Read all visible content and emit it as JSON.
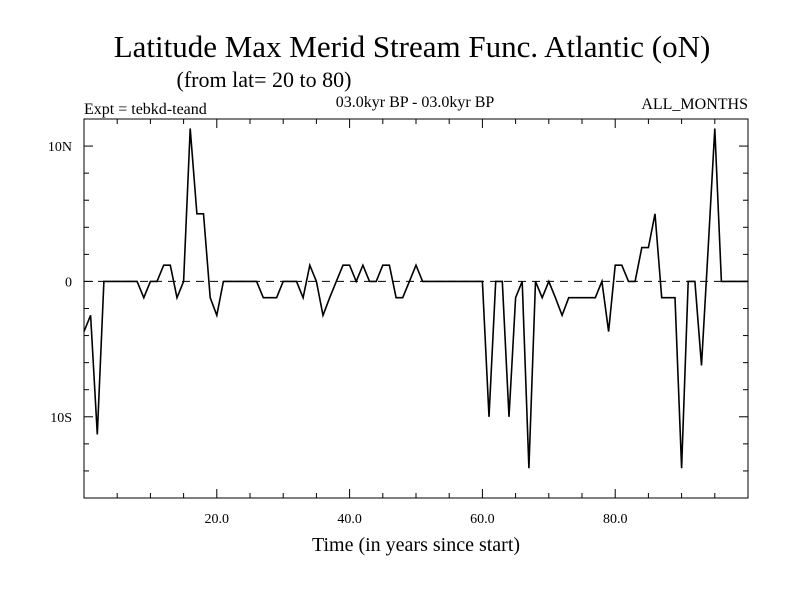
{
  "chart_data": {
    "type": "line",
    "title": "Latitude Max Merid Stream Func. Atlantic (oN)",
    "subtitle": "(from lat= 20 to 80)",
    "expt_label": "Expt = tebkd-teand",
    "period_label": "03.0kyr BP - 03.0kyr BP",
    "months_label": "ALL_MONTHS",
    "xlabel": "Time (in years since start)",
    "ylabel": "",
    "xlim": [
      0,
      100
    ],
    "ylim": [
      -16,
      12
    ],
    "x_ticks": [
      {
        "value": 20,
        "label": "20.0"
      },
      {
        "value": 40,
        "label": "40.0"
      },
      {
        "value": 60,
        "label": "60.0"
      },
      {
        "value": 80,
        "label": "80.0"
      }
    ],
    "y_ticks": [
      {
        "value": 10,
        "label": "10N"
      },
      {
        "value": 0,
        "label": "0"
      },
      {
        "value": -10,
        "label": "10S"
      }
    ],
    "zero_line": "dashed",
    "x": [
      0,
      1,
      2,
      3,
      4,
      5,
      6,
      7,
      8,
      9,
      10,
      11,
      12,
      13,
      14,
      15,
      16,
      17,
      18,
      19,
      20,
      21,
      22,
      23,
      24,
      25,
      26,
      27,
      28,
      29,
      30,
      31,
      32,
      33,
      34,
      35,
      36,
      37,
      38,
      39,
      40,
      41,
      42,
      43,
      44,
      45,
      46,
      47,
      48,
      49,
      50,
      51,
      52,
      53,
      54,
      55,
      56,
      57,
      58,
      59,
      60,
      61,
      62,
      63,
      64,
      65,
      66,
      67,
      68,
      69,
      70,
      71,
      72,
      73,
      74,
      75,
      76,
      77,
      78,
      79,
      80,
      81,
      82,
      83,
      84,
      85,
      86,
      87,
      88,
      89,
      90,
      91,
      92,
      93,
      94,
      95,
      96,
      97,
      98,
      99,
      100
    ],
    "y": [
      -3.7,
      -2.5,
      -11.3,
      0,
      0,
      0,
      0,
      0,
      0,
      -1.2,
      0,
      0,
      1.2,
      1.2,
      -1.2,
      0,
      11.3,
      5,
      5,
      -1.2,
      -2.5,
      0,
      0,
      0,
      0,
      0,
      0,
      -1.2,
      -1.2,
      -1.2,
      0,
      0,
      0,
      -1.2,
      1.2,
      0,
      -2.5,
      -1.2,
      0,
      1.2,
      1.2,
      0,
      1.2,
      0,
      0,
      1.2,
      1.2,
      -1.2,
      -1.2,
      0,
      1.2,
      0,
      0,
      0,
      0,
      0,
      0,
      0,
      0,
      0,
      0,
      -10,
      0,
      0,
      -10,
      -1.2,
      0,
      -13.8,
      0,
      -1.2,
      0,
      -1.2,
      -2.5,
      -1.2,
      -1.2,
      -1.2,
      -1.2,
      -1.2,
      0,
      -3.7,
      1.2,
      1.2,
      0,
      0,
      2.5,
      2.5,
      5,
      -1.2,
      -1.2,
      -1.2,
      -13.8,
      0,
      0,
      -6.2,
      2.5,
      11.3,
      0,
      0,
      0,
      0,
      0
    ]
  }
}
